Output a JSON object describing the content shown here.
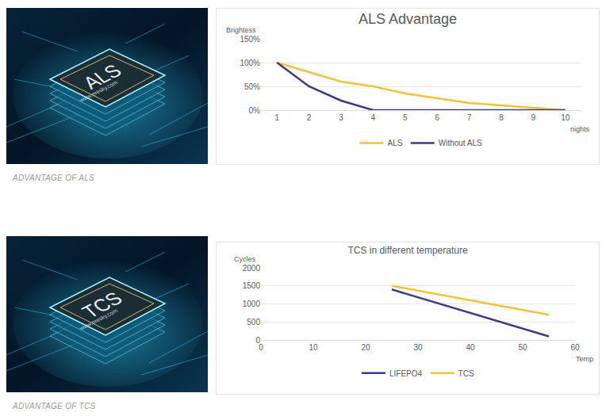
{
  "chart_data": [
    {
      "type": "line",
      "title": "ALS Advantage",
      "ylabel": "Brightess",
      "xlabel": "nights",
      "categories": [
        "1",
        "2",
        "3",
        "4",
        "5",
        "6",
        "7",
        "8",
        "9",
        "10"
      ],
      "series": [
        {
          "name": "ALS",
          "color": "#f4c236",
          "values": [
            100,
            80,
            60,
            50,
            35,
            25,
            15,
            10,
            5,
            0
          ]
        },
        {
          "name": "Without ALS",
          "color": "#3d3b82",
          "values": [
            100,
            50,
            20,
            0,
            0,
            0,
            0,
            0,
            0,
            0
          ]
        }
      ],
      "ylim": [
        0,
        150
      ],
      "yticks": [
        {
          "value": 0,
          "label": "0%"
        },
        {
          "value": 50,
          "label": "50%"
        },
        {
          "value": 100,
          "label": "100%"
        },
        {
          "value": 150,
          "label": "150%"
        }
      ],
      "grid": true,
      "legend": "bottom",
      "line_style": "solid"
    },
    {
      "type": "line",
      "title": "TCS in different temperature",
      "ylabel": "Cycles",
      "xlabel": "Temp",
      "series": [
        {
          "name": "LIFEPO4",
          "color": "#3d3b82",
          "x": [
            25,
            55
          ],
          "values": [
            1400,
            100
          ]
        },
        {
          "name": "TCS",
          "color": "#f4c236",
          "x": [
            25,
            55
          ],
          "values": [
            1500,
            700
          ]
        }
      ],
      "xlim": [
        0,
        60
      ],
      "xticks": [
        0,
        10,
        20,
        30,
        40,
        50,
        60
      ],
      "ylim": [
        0,
        2000
      ],
      "yticks": [
        0,
        500,
        1000,
        1500,
        2000
      ],
      "grid": true,
      "legend": "bottom",
      "line_style": "solid"
    }
  ],
  "panels": [
    {
      "chip_label": "ALS",
      "chip_url": "www.eresky.com",
      "caption": "ADVANTAGE OF ALS"
    },
    {
      "chip_label": "TCS",
      "chip_url": "www.eresky.com",
      "caption": "ADVANTAGE OF TCS"
    }
  ]
}
